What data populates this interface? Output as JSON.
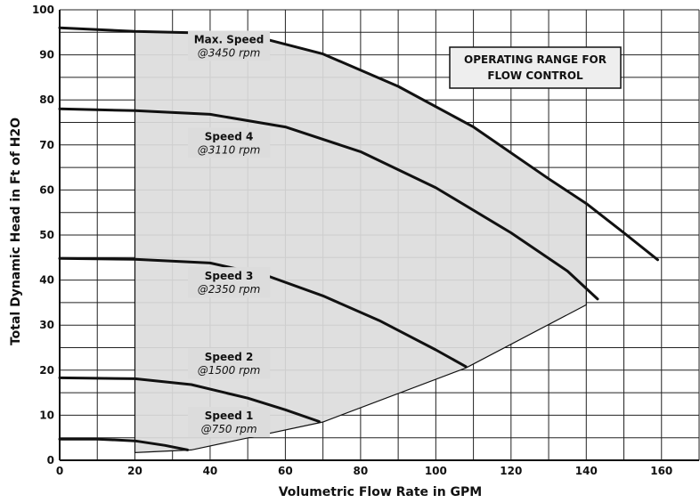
{
  "chart_data": {
    "type": "line",
    "xlabel": "Volumetric Flow Rate in GPM",
    "ylabel": "Total Dynamic Head in Ft of H2O",
    "xlim": [
      0,
      170
    ],
    "ylim": [
      0,
      100
    ],
    "x_ticks": [
      0,
      20,
      40,
      60,
      80,
      100,
      120,
      140,
      160
    ],
    "y_ticks": [
      0,
      10,
      20,
      30,
      40,
      50,
      60,
      70,
      80,
      90,
      100
    ],
    "grid": true,
    "grid_x_step": 10,
    "grid_y_step": 5,
    "annotation_box": {
      "line1": "OPERATING RANGE FOR",
      "line2": "FLOW CONTROL"
    },
    "operating_region": {
      "fill": "#dcdcdc",
      "points": [
        [
          20,
          95.2
        ],
        [
          50,
          94.5
        ],
        [
          70,
          90.2
        ],
        [
          90,
          83
        ],
        [
          110,
          74
        ],
        [
          130,
          62.5
        ],
        [
          140,
          57
        ],
        [
          140,
          34.5
        ],
        [
          108,
          20.5
        ],
        [
          70,
          8.5
        ],
        [
          35,
          2.3
        ],
        [
          20,
          1.7
        ]
      ]
    },
    "series": [
      {
        "name": "Max. Speed",
        "rpm": "@3450 rpm",
        "label_at": [
          45,
          92
        ],
        "points": [
          [
            0,
            96
          ],
          [
            20,
            95.2
          ],
          [
            40,
            94.8
          ],
          [
            50,
            94.5
          ],
          [
            70,
            90.2
          ],
          [
            90,
            83
          ],
          [
            110,
            74
          ],
          [
            130,
            62.5
          ],
          [
            140,
            57
          ],
          [
            150,
            50.5
          ],
          [
            159,
            44.5
          ]
        ]
      },
      {
        "name": "Speed 4",
        "rpm": "@3110 rpm",
        "label_at": [
          45,
          70.5
        ],
        "points": [
          [
            0,
            78
          ],
          [
            20,
            77.6
          ],
          [
            40,
            76.8
          ],
          [
            60,
            74
          ],
          [
            80,
            68.5
          ],
          [
            100,
            60.5
          ],
          [
            120,
            50.5
          ],
          [
            135,
            42
          ],
          [
            143,
            35.8
          ]
        ]
      },
      {
        "name": "Speed 3",
        "rpm": "@2350 rpm",
        "label_at": [
          45,
          39.5
        ],
        "points": [
          [
            0,
            44.8
          ],
          [
            20,
            44.6
          ],
          [
            40,
            43.8
          ],
          [
            55,
            41
          ],
          [
            70,
            36.5
          ],
          [
            85,
            31
          ],
          [
            100,
            24.5
          ],
          [
            108,
            20.8
          ]
        ]
      },
      {
        "name": "Speed 2",
        "rpm": "@1500 rpm",
        "label_at": [
          45,
          21.5
        ],
        "points": [
          [
            0,
            18.3
          ],
          [
            20,
            18.1
          ],
          [
            35,
            16.8
          ],
          [
            50,
            13.8
          ],
          [
            60,
            11.2
          ],
          [
            69,
            8.6
          ]
        ]
      },
      {
        "name": "Speed 1",
        "rpm": "@750 rpm",
        "label_at": [
          45,
          8.5
        ],
        "points": [
          [
            0,
            4.7
          ],
          [
            10,
            4.7
          ],
          [
            20,
            4.3
          ],
          [
            28,
            3.3
          ],
          [
            34,
            2.3
          ]
        ]
      }
    ],
    "colors": {
      "curve": "#111111",
      "grid": "#222222",
      "region": "#dcdcdc"
    }
  }
}
